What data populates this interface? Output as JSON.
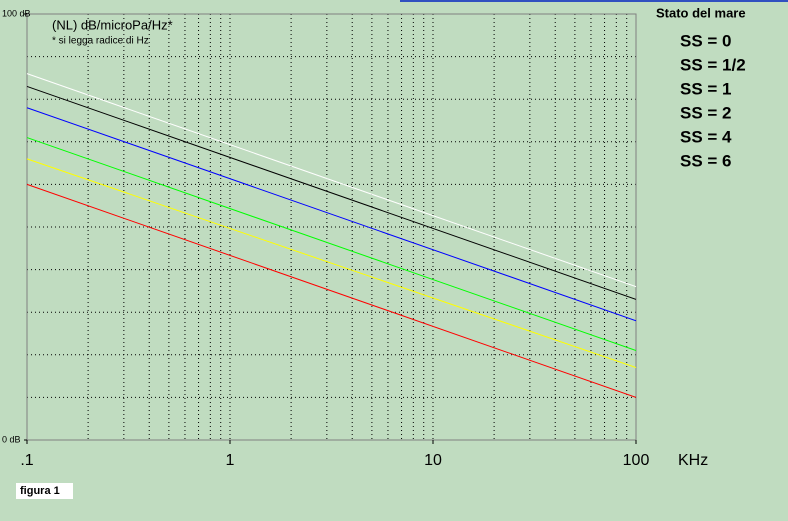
{
  "chart_data": {
    "type": "line",
    "title": "(NL) dB/microPa/Hz*",
    "subtitle": "* si legga radice di Hz",
    "x_label": "KHz",
    "legend_title": "Stato del mare",
    "caption": "figura 1",
    "x_log": true,
    "xlim": [
      0.1,
      100
    ],
    "xticks": [
      {
        "value": 0.1,
        "label": ".1"
      },
      1,
      10,
      100
    ],
    "xgrid": [
      0.2,
      0.3,
      0.4,
      0.5,
      0.6,
      0.7,
      0.8,
      0.9,
      1,
      2,
      3,
      4,
      5,
      6,
      7,
      8,
      9,
      10,
      20,
      30,
      40,
      50,
      60,
      70,
      80,
      90
    ],
    "ylim": [
      0,
      100
    ],
    "yticks": [
      {
        "value": 0,
        "label": "0 dB"
      },
      {
        "value": 100,
        "label": "100 dB"
      }
    ],
    "ygrid": [
      10,
      20,
      30,
      40,
      50,
      60,
      70,
      80,
      90
    ],
    "x": [
      0.1,
      100
    ],
    "series": [
      {
        "name": "SS = 0",
        "color": "#ff0000",
        "values": [
          60,
          10
        ]
      },
      {
        "name": "SS = 1/2",
        "color": "#ffff00",
        "values": [
          66,
          17
        ]
      },
      {
        "name": "SS = 1",
        "color": "#00ff00",
        "values": [
          71,
          21
        ]
      },
      {
        "name": "SS = 2",
        "color": "#0000ff",
        "values": [
          78,
          28
        ]
      },
      {
        "name": "SS = 4",
        "color": "#000000",
        "values": [
          83,
          33
        ]
      },
      {
        "name": "SS = 6",
        "color": "#ffffff",
        "values": [
          86,
          36
        ]
      }
    ]
  }
}
